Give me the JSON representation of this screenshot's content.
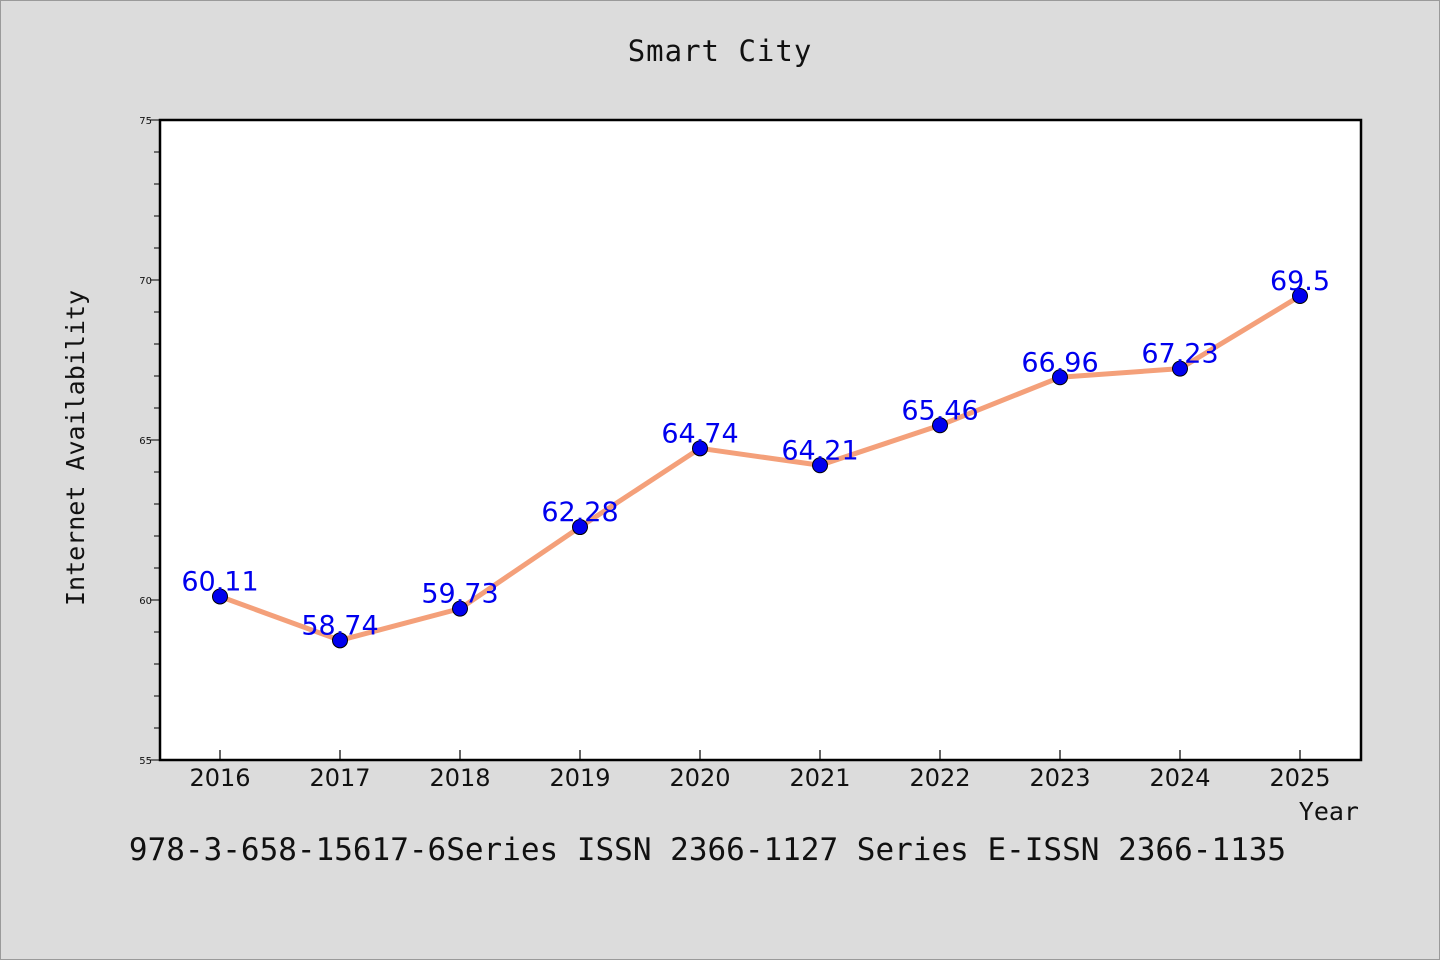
{
  "footer_text": "978-3-658-15617-6Series ISSN 2366-1127 Series E-ISSN 2366-1135",
  "chart_data": {
    "type": "line",
    "title": "Smart City",
    "xlabel": "Year",
    "ylabel": "Internet Availability",
    "categories": [
      "2016",
      "2017",
      "2018",
      "2019",
      "2020",
      "2021",
      "2022",
      "2023",
      "2024",
      "2025"
    ],
    "series": [
      {
        "values": [
          60.11,
          58.74,
          59.73,
          62.28,
          64.74,
          64.21,
          65.46,
          66.96,
          67.23,
          69.5
        ]
      }
    ],
    "data_labels": [
      "60.11",
      "58.74",
      "59.73",
      "62.28",
      "64.74",
      "64.21",
      "65.46",
      "66.96",
      "67.23",
      "69.5"
    ],
    "ylim": [
      55,
      75
    ],
    "yticks": [
      55,
      60,
      65,
      70,
      75
    ],
    "grid": false,
    "legend": "none",
    "line_color": "#f4a07a",
    "marker_color": "#0000ee",
    "label_color": "#0000ee",
    "plot_background": "#ffffff",
    "page_background": "#dcdcdc"
  }
}
